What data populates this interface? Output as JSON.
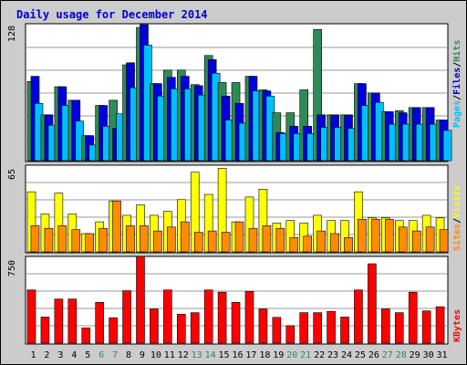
{
  "title": "Daily usage for December 2014",
  "colors": {
    "frame_bg": "#cccccc",
    "panel_bg": "#ffffff",
    "title": "#0000cc",
    "hits_bar": "#2e8b57",
    "files_bar": "#0000dd",
    "pages_bar": "#00bfff",
    "visits_bar": "#ffff00",
    "sites_bar": "#ff8c00",
    "kbytes_bar": "#ff0000",
    "weekend_label": "#2e8b57",
    "weekday_label": "#000000"
  },
  "chart_data": [
    {
      "type": "bar",
      "panel": "hits-files-pages",
      "y_axis_max_label": "128",
      "ylim": [
        0,
        128
      ],
      "legend": [
        "Pages",
        "Files",
        "Hits"
      ],
      "categories": [
        "1",
        "2",
        "3",
        "4",
        "5",
        "6",
        "7",
        "8",
        "9",
        "10",
        "11",
        "12",
        "13",
        "14",
        "15",
        "16",
        "17",
        "18",
        "19",
        "20",
        "21",
        "22",
        "23",
        "24",
        "25",
        "26",
        "27",
        "28",
        "29",
        "30",
        "31"
      ],
      "weekend_days": [
        "6",
        "7",
        "13",
        "14",
        "20",
        "21",
        "27",
        "28"
      ],
      "series": [
        {
          "name": "Hits",
          "values": [
            76,
            44,
            71,
            58,
            24,
            53,
            58,
            92,
            128,
            74,
            87,
            87,
            73,
            101,
            75,
            75,
            81,
            68,
            46,
            46,
            68,
            126,
            44,
            44,
            74,
            65,
            47,
            48,
            51,
            51,
            39
          ]
        },
        {
          "name": "Files",
          "values": [
            81,
            44,
            71,
            58,
            24,
            53,
            31,
            94,
            133,
            74,
            80,
            81,
            72,
            97,
            62,
            55,
            81,
            67,
            27,
            33,
            33,
            44,
            44,
            44,
            74,
            65,
            47,
            46,
            51,
            51,
            39
          ]
        },
        {
          "name": "Pages",
          "values": [
            55,
            34,
            53,
            38,
            15,
            33,
            45,
            70,
            111,
            62,
            69,
            69,
            63,
            84,
            39,
            36,
            67,
            62,
            26,
            26,
            26,
            32,
            32,
            31,
            53,
            56,
            35,
            35,
            35,
            35,
            29
          ]
        }
      ]
    },
    {
      "type": "bar",
      "panel": "visits-sites",
      "y_axis_max_label": "65",
      "ylim": [
        0,
        65
      ],
      "legend": [
        "Sites",
        "Visits"
      ],
      "categories": [
        "1",
        "2",
        "3",
        "4",
        "5",
        "6",
        "7",
        "8",
        "9",
        "10",
        "11",
        "12",
        "13",
        "14",
        "15",
        "16",
        "17",
        "18",
        "19",
        "20",
        "21",
        "22",
        "23",
        "24",
        "25",
        "26",
        "27",
        "28",
        "29",
        "30",
        "31"
      ],
      "series": [
        {
          "name": "Visits",
          "values": [
            46,
            29,
            45,
            29,
            14,
            23,
            39,
            28,
            36,
            28,
            31,
            40,
            61,
            44,
            64,
            23,
            42,
            48,
            22,
            24,
            22,
            28,
            24,
            24,
            46,
            26,
            26,
            24,
            24,
            28,
            26
          ]
        },
        {
          "name": "Sites",
          "values": [
            20,
            18,
            20,
            17,
            14,
            18,
            39,
            20,
            20,
            16,
            19,
            23,
            15,
            16,
            15,
            23,
            18,
            20,
            18,
            11,
            12,
            16,
            14,
            11,
            25,
            25,
            25,
            19,
            16,
            19,
            17
          ]
        }
      ]
    },
    {
      "type": "bar",
      "panel": "kbytes",
      "y_axis_max_label": "750",
      "ylim": [
        0,
        750
      ],
      "legend": [
        "KBytes"
      ],
      "categories": [
        "1",
        "2",
        "3",
        "4",
        "5",
        "6",
        "7",
        "8",
        "9",
        "10",
        "11",
        "12",
        "13",
        "14",
        "15",
        "16",
        "17",
        "18",
        "19",
        "20",
        "21",
        "22",
        "23",
        "24",
        "25",
        "26",
        "27",
        "28",
        "29",
        "30",
        "31"
      ],
      "series": [
        {
          "name": "KBytes",
          "values": [
            475,
            233,
            394,
            394,
            136,
            364,
            227,
            468,
            776,
            305,
            475,
            258,
            272,
            475,
            455,
            364,
            462,
            305,
            230,
            156,
            272,
            272,
            284,
            233,
            475,
            709,
            305,
            272,
            455,
            288,
            325
          ]
        }
      ]
    }
  ]
}
